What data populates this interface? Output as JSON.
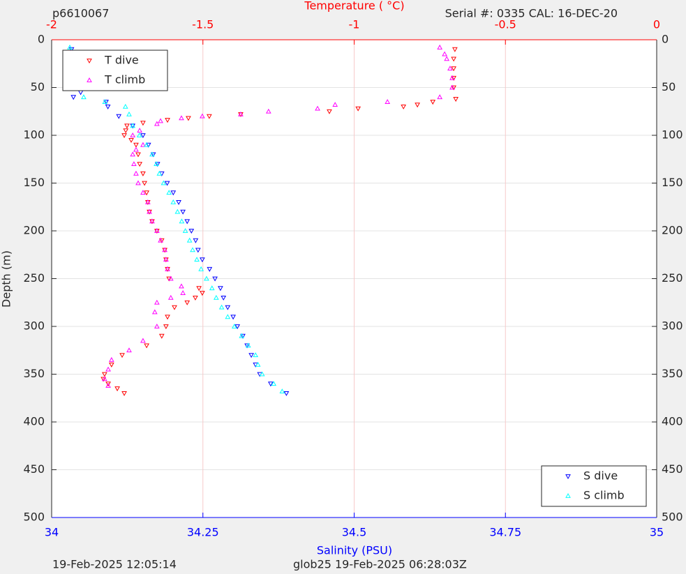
{
  "chart_data": {
    "type": "scatter",
    "title_left": "p6610067",
    "title_right": "Serial #: 0335  CAL: 16-DEC-20",
    "x2_label": "Temperature (   °C)",
    "x_label": "Salinity (PSU)",
    "y_label": "Depth (m)",
    "footer_left": "19-Feb-2025 12:05:14",
    "footer_right": "glob25 19-Feb-2025 06:28:03Z",
    "xlim": [
      34,
      35
    ],
    "xticks": [
      34,
      34.25,
      34.5,
      34.75,
      35
    ],
    "x_color": "#0000ff",
    "x2lim": [
      -2,
      0
    ],
    "x2ticks": [
      -2,
      -1.5,
      -1,
      -0.5,
      0
    ],
    "x2_color": "#ff0000",
    "ylim": [
      0,
      500
    ],
    "yticks": [
      0,
      50,
      100,
      150,
      200,
      250,
      300,
      350,
      400,
      450,
      500
    ],
    "y_reversed": true,
    "grid": true,
    "legend_loc": "upper left",
    "legend2_loc": "lower right",
    "series": [
      {
        "name": "T dive",
        "color": "#ff0000",
        "marker": "down",
        "axis": "x2",
        "x": [
          -0.667,
          -0.671,
          -0.671,
          -0.671,
          -0.671,
          -0.664,
          -0.74,
          -0.791,
          -0.837,
          -0.987,
          -1.082,
          -1.375,
          -1.479,
          -1.548,
          -1.617,
          -1.698,
          -1.751,
          -1.755,
          -1.76,
          -1.737,
          -1.721,
          -1.714,
          -1.709,
          -1.698,
          -1.693,
          -1.686,
          -1.682,
          -1.677,
          -1.668,
          -1.652,
          -1.636,
          -1.626,
          -1.622,
          -1.617,
          -1.612,
          -1.513,
          -1.502,
          -1.525,
          -1.552,
          -1.594,
          -1.617,
          -1.622,
          -1.636,
          -1.686,
          -1.767,
          -1.802,
          -1.825,
          -1.829,
          -1.813,
          -1.783,
          -1.76
        ],
        "values": [
          10,
          20,
          30,
          40,
          50,
          62,
          65,
          68,
          70,
          72,
          75,
          78,
          80,
          82,
          84,
          87,
          90,
          95,
          100,
          105,
          110,
          120,
          130,
          140,
          150,
          160,
          170,
          180,
          190,
          200,
          210,
          220,
          230,
          240,
          250,
          260,
          265,
          270,
          275,
          280,
          290,
          300,
          310,
          320,
          330,
          340,
          350,
          355,
          360,
          365,
          370
        ]
      },
      {
        "name": "T climb",
        "color": "#ff00ff",
        "marker": "up",
        "axis": "x2",
        "x": [
          -0.717,
          -0.701,
          -0.694,
          -0.683,
          -0.676,
          -0.676,
          -0.717,
          -0.89,
          -1.063,
          -1.121,
          -1.283,
          -1.375,
          -1.502,
          -1.571,
          -1.64,
          -1.652,
          -1.709,
          -1.732,
          -1.698,
          -1.721,
          -1.732,
          -1.728,
          -1.721,
          -1.714,
          -1.698,
          -1.682,
          -1.677,
          -1.668,
          -1.652,
          -1.64,
          -1.626,
          -1.622,
          -1.617,
          -1.606,
          -1.571,
          -1.566,
          -1.606,
          -1.652,
          -1.659,
          -1.652,
          -1.698,
          -1.744,
          -1.802,
          -1.813,
          -1.825,
          -1.813
        ],
        "values": [
          8,
          15,
          20,
          30,
          40,
          50,
          60,
          65,
          68,
          72,
          75,
          78,
          80,
          82,
          85,
          88,
          95,
          100,
          110,
          115,
          120,
          130,
          140,
          150,
          160,
          170,
          180,
          190,
          200,
          210,
          220,
          230,
          240,
          250,
          258,
          265,
          270,
          275,
          285,
          300,
          315,
          325,
          335,
          345,
          355,
          362
        ]
      },
      {
        "name": "S dive",
        "color": "#0000ff",
        "marker": "down",
        "axis": "x",
        "x": [
          34.033,
          34.037,
          34.042,
          34.044,
          34.046,
          34.048,
          34.036,
          34.09,
          34.093,
          34.111,
          34.134,
          34.151,
          34.16,
          34.168,
          34.175,
          34.182,
          34.191,
          34.201,
          34.21,
          34.217,
          34.224,
          34.231,
          34.238,
          34.242,
          34.249,
          34.261,
          34.27,
          34.279,
          34.284,
          34.291,
          34.3,
          34.307,
          34.316,
          34.323,
          34.33,
          34.337,
          34.344,
          34.362,
          34.388
        ],
        "values": [
          10,
          20,
          30,
          40,
          50,
          55,
          60,
          65,
          70,
          80,
          90,
          100,
          110,
          120,
          130,
          140,
          150,
          160,
          170,
          180,
          190,
          200,
          210,
          220,
          230,
          240,
          250,
          260,
          270,
          280,
          290,
          300,
          310,
          320,
          330,
          340,
          350,
          360,
          370
        ]
      },
      {
        "name": "S climb",
        "color": "#00ffff",
        "marker": "up",
        "axis": "x",
        "x": [
          34.03,
          34.032,
          34.035,
          34.039,
          34.044,
          34.053,
          34.088,
          34.122,
          34.128,
          34.134,
          34.145,
          34.157,
          34.166,
          34.173,
          34.178,
          34.185,
          34.194,
          34.201,
          34.208,
          34.215,
          34.221,
          34.228,
          34.233,
          34.24,
          34.247,
          34.256,
          34.265,
          34.272,
          34.281,
          34.291,
          34.302,
          34.314,
          34.325,
          34.337,
          34.341,
          34.348,
          34.367,
          34.381
        ],
        "values": [
          8,
          20,
          30,
          40,
          50,
          60,
          65,
          70,
          78,
          90,
          100,
          110,
          120,
          130,
          140,
          150,
          160,
          170,
          180,
          190,
          200,
          210,
          220,
          230,
          240,
          250,
          260,
          270,
          280,
          290,
          300,
          310,
          320,
          330,
          340,
          350,
          360,
          368
        ]
      }
    ]
  }
}
